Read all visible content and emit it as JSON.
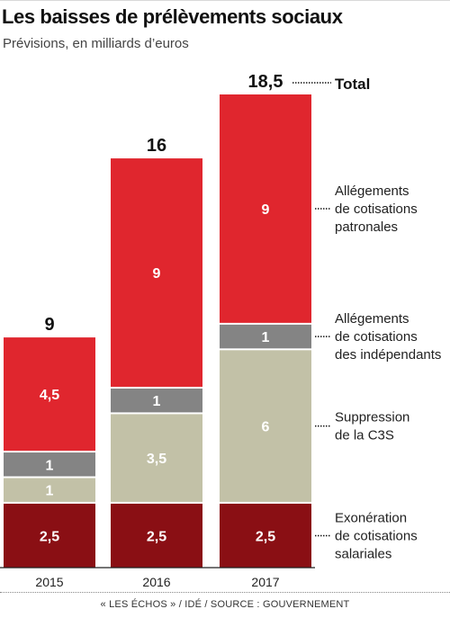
{
  "title": "Les baisses de prélèvements sociaux",
  "subtitle": "Prévisions, en milliards d’euros",
  "source": "« LES ÉCHOS » / IDÉ / SOURCE : GOUVERNEMENT",
  "chart_data": {
    "type": "bar",
    "stacked": true,
    "categories": [
      "2015",
      "2016",
      "2017"
    ],
    "totals": [
      "9",
      "16",
      "18,5"
    ],
    "total_label": "Total",
    "series": [
      {
        "name": "Exonération de cotisations salariales",
        "label_lines": [
          "Exonération",
          "de cotisations",
          "salariales"
        ],
        "values": [
          2.5,
          2.5,
          2.5
        ],
        "display": [
          "2,5",
          "2,5",
          "2,5"
        ],
        "color": "#8a0f14",
        "text_color": "#ffffff"
      },
      {
        "name": "Suppression de la C3S",
        "label_lines": [
          "Suppression",
          "de la C3S"
        ],
        "values": [
          1,
          3.5,
          6
        ],
        "display": [
          "1",
          "3,5",
          "6"
        ],
        "color": "#c2c1a7",
        "text_color": "#ffffff"
      },
      {
        "name": "Allégements de cotisations des indépendants",
        "label_lines": [
          "Allégements",
          "de cotisations",
          "des indépendants"
        ],
        "values": [
          1,
          1,
          1
        ],
        "display": [
          "1",
          "1",
          "1"
        ],
        "color": "#848484",
        "text_color": "#ffffff"
      },
      {
        "name": "Allégements de cotisations patronales",
        "label_lines": [
          "Allégements",
          "de cotisations",
          "patronales"
        ],
        "values": [
          4.5,
          9,
          9
        ],
        "display": [
          "4,5",
          "9",
          "9"
        ],
        "color": "#e0262e",
        "text_color": "#ffffff"
      }
    ],
    "ylim": [
      0,
      18.5
    ],
    "xlabel": "",
    "ylabel": "",
    "grid": false,
    "legend": "right"
  }
}
